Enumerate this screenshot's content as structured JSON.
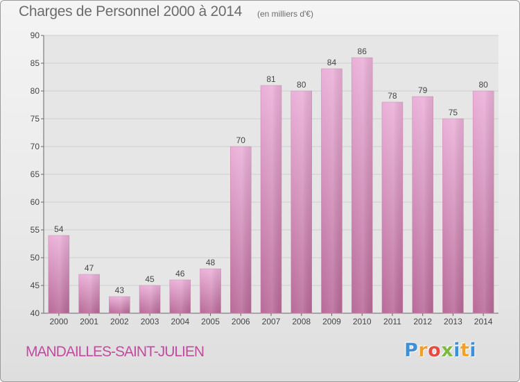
{
  "header": {
    "title": "Charges de Personnel 2000 à 2014",
    "subtitle": "(en milliers d'€)"
  },
  "footer": {
    "commune": "MANDAILLES-SAINT-JULIEN",
    "logo_letters": [
      "P",
      "r",
      "o",
      "x",
      "i",
      "t",
      "i"
    ]
  },
  "colors": {
    "bar_light": "#eab0d8",
    "bar_dark": "#b86a98",
    "commune_text": "#c44aa0"
  },
  "chart_data": {
    "type": "bar",
    "title": "Charges de Personnel 2000 à 2014",
    "subtitle": "(en milliers d'€)",
    "xlabel": "",
    "ylabel": "",
    "categories": [
      "2000",
      "2001",
      "2002",
      "2003",
      "2004",
      "2005",
      "2006",
      "2007",
      "2008",
      "2009",
      "2010",
      "2011",
      "2012",
      "2013",
      "2014"
    ],
    "values": [
      54,
      47,
      43,
      45,
      46,
      48,
      70,
      81,
      80,
      84,
      86,
      78,
      79,
      75,
      80
    ],
    "ylim": [
      40,
      90
    ],
    "yticks": [
      40,
      45,
      50,
      55,
      60,
      65,
      70,
      75,
      80,
      85,
      90
    ],
    "grid": true,
    "data_labels": true,
    "legend": "none"
  }
}
